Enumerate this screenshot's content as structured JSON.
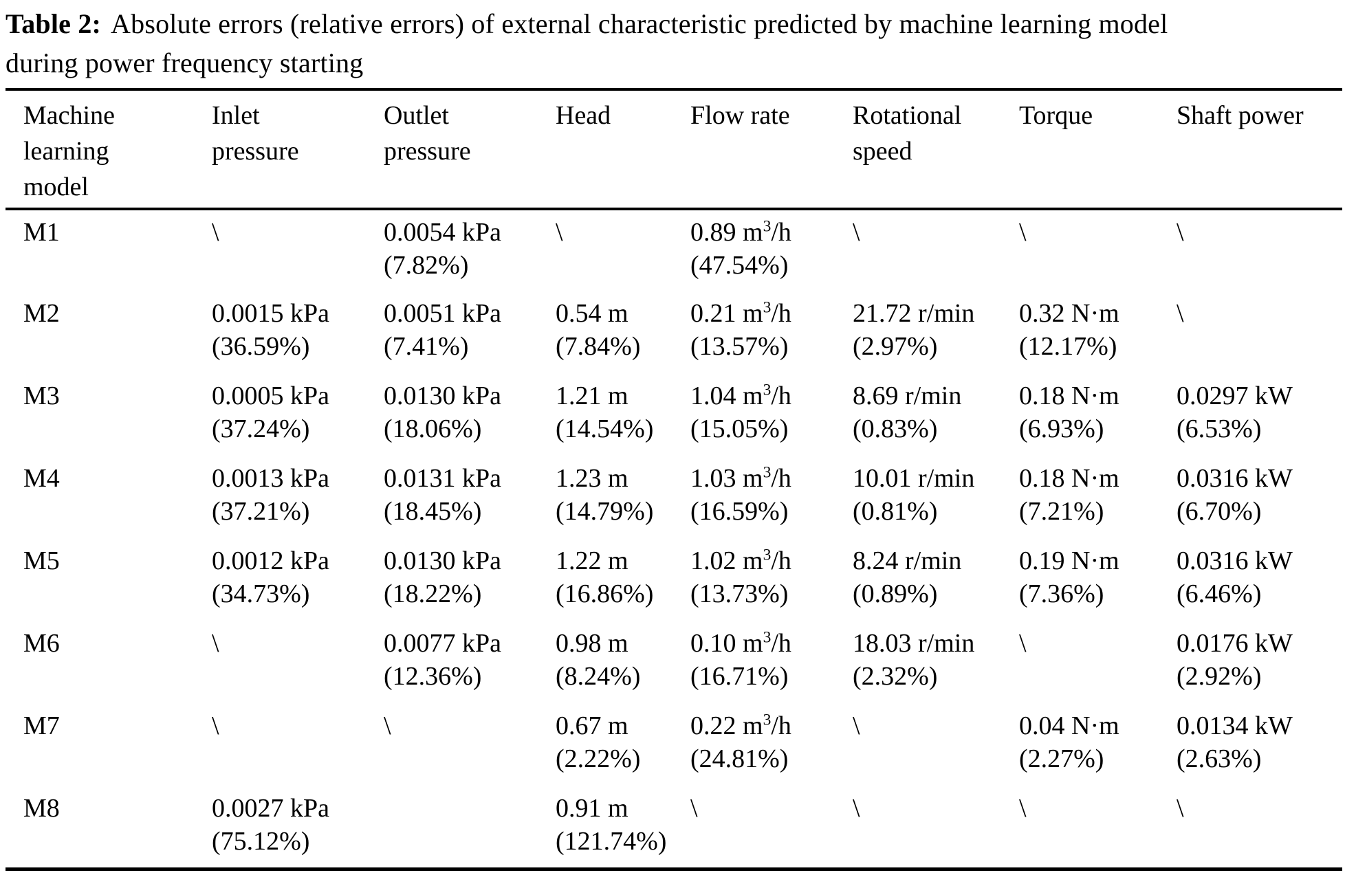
{
  "colors": {
    "text": "#000000",
    "background": "#ffffff"
  },
  "caption": {
    "label": "Table 2:",
    "line1": "Absolute errors (relative errors) of external characteristic predicted by machine learning model",
    "line2": "during power frequency starting"
  },
  "table": {
    "columns": [
      "Machine learning model",
      "Inlet pressure",
      "Outlet pressure",
      "Head",
      "Flow rate",
      "Rotational speed",
      "Torque",
      "Shaft power"
    ],
    "rows": [
      {
        "model": "M1",
        "values": [
          [
            "\\",
            ""
          ],
          [
            "0.0054 kPa",
            "(7.82%)"
          ],
          [
            "\\",
            ""
          ],
          [
            "0.89 m³/h",
            "(47.54%)"
          ],
          [
            "\\",
            ""
          ],
          [
            "\\",
            ""
          ],
          [
            "\\",
            ""
          ]
        ]
      },
      {
        "model": "M2",
        "values": [
          [
            "0.0015 kPa",
            "(36.59%)"
          ],
          [
            "0.0051 kPa",
            "(7.41%)"
          ],
          [
            "0.54 m",
            "(7.84%)"
          ],
          [
            "0.21 m³/h",
            "(13.57%)"
          ],
          [
            "21.72 r/min",
            "(2.97%)"
          ],
          [
            "0.32 N·m",
            "(12.17%)"
          ],
          [
            "\\",
            ""
          ]
        ]
      },
      {
        "model": "M3",
        "values": [
          [
            "0.0005 kPa",
            "(37.24%)"
          ],
          [
            "0.0130 kPa",
            "(18.06%)"
          ],
          [
            "1.21 m",
            "(14.54%)"
          ],
          [
            "1.04 m³/h",
            "(15.05%)"
          ],
          [
            "8.69 r/min",
            "(0.83%)"
          ],
          [
            "0.18 N·m",
            "(6.93%)"
          ],
          [
            "0.0297 kW",
            "(6.53%)"
          ]
        ]
      },
      {
        "model": "M4",
        "values": [
          [
            "0.0013 kPa",
            "(37.21%)"
          ],
          [
            "0.0131 kPa",
            "(18.45%)"
          ],
          [
            "1.23 m",
            "(14.79%)"
          ],
          [
            "1.03 m³/h",
            "(16.59%)"
          ],
          [
            "10.01 r/min",
            "(0.81%)"
          ],
          [
            "0.18 N·m",
            "(7.21%)"
          ],
          [
            "0.0316 kW",
            "(6.70%)"
          ]
        ]
      },
      {
        "model": "M5",
        "values": [
          [
            "0.0012 kPa",
            "(34.73%)"
          ],
          [
            "0.0130 kPa",
            "(18.22%)"
          ],
          [
            "1.22 m",
            "(16.86%)"
          ],
          [
            "1.02 m³/h",
            "(13.73%)"
          ],
          [
            "8.24 r/min",
            "(0.89%)"
          ],
          [
            "0.19 N·m",
            "(7.36%)"
          ],
          [
            "0.0316 kW",
            "(6.46%)"
          ]
        ]
      },
      {
        "model": "M6",
        "values": [
          [
            "\\",
            ""
          ],
          [
            "0.0077 kPa",
            "(12.36%)"
          ],
          [
            "0.98 m",
            "(8.24%)"
          ],
          [
            "0.10 m³/h",
            "(16.71%)"
          ],
          [
            "18.03 r/min",
            "(2.32%)"
          ],
          [
            "\\",
            ""
          ],
          [
            "0.0176 kW",
            "(2.92%)"
          ]
        ]
      },
      {
        "model": "M7",
        "values": [
          [
            "\\",
            ""
          ],
          [
            "\\",
            ""
          ],
          [
            "0.67 m",
            "(2.22%)"
          ],
          [
            "0.22 m³/h",
            "(24.81%)"
          ],
          [
            "\\",
            ""
          ],
          [
            "0.04 N·m",
            "(2.27%)"
          ],
          [
            "0.0134 kW",
            "(2.63%)"
          ]
        ]
      },
      {
        "model": "M8",
        "values": [
          [
            "0.0027 kPa",
            "(75.12%)"
          ],
          [
            "",
            ""
          ],
          [
            "0.91 m",
            "(121.74%)"
          ],
          [
            "\\",
            ""
          ],
          [
            "\\",
            ""
          ],
          [
            "\\",
            ""
          ],
          [
            "\\",
            ""
          ]
        ]
      }
    ]
  }
}
